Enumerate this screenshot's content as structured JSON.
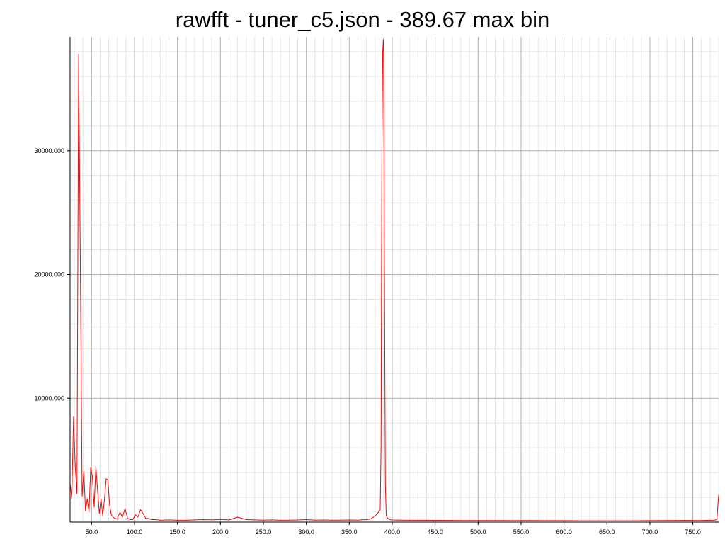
{
  "chart_data": {
    "type": "line",
    "title": "rawfft - tuner_c5.json - 389.67 max bin",
    "xlabel": "",
    "ylabel": "",
    "xlim": [
      25.0,
      780.0
    ],
    "ylim": [
      0.0,
      39200.0
    ],
    "grid": true,
    "legend": "none",
    "line_color": "#ff0000",
    "major_grid_color": "#b0b0b0",
    "minor_grid_color": "#e4e4e4",
    "x_ticks": [
      50,
      100,
      150,
      200,
      250,
      300,
      350,
      400,
      450,
      500,
      550,
      600,
      650,
      700,
      750
    ],
    "x_tick_labels": [
      "50.0",
      "100.0",
      "150.0",
      "200.0",
      "250.0",
      "300.0",
      "350.0",
      "400.0",
      "450.0",
      "500.0",
      "550.0",
      "600.0",
      "650.0",
      "700.0",
      "750.0"
    ],
    "y_ticks": [
      10000,
      20000,
      30000
    ],
    "y_tick_labels": [
      "10000.000",
      "20000.000",
      "30000.000"
    ],
    "series": [
      {
        "x": [
          25,
          27,
          29,
          31,
          33,
          35,
          37,
          39,
          41,
          43,
          45,
          47,
          49,
          51,
          53,
          55,
          57,
          59,
          61,
          63,
          65,
          67,
          69,
          71,
          73,
          75,
          77,
          80,
          83,
          86,
          89,
          92,
          95,
          98,
          101,
          104,
          107,
          110,
          113,
          116,
          120,
          125,
          130,
          140,
          150,
          160,
          170,
          180,
          190,
          200,
          210,
          220,
          230,
          240,
          250,
          260,
          270,
          280,
          290,
          300,
          310,
          320,
          330,
          340,
          350,
          360,
          370,
          375,
          380,
          383,
          385,
          386,
          387,
          388,
          389,
          389.67,
          390,
          391,
          392,
          393,
          394,
          395,
          397,
          400,
          410,
          420,
          440,
          460,
          480,
          500,
          520,
          540,
          560,
          580,
          600,
          620,
          640,
          660,
          680,
          700,
          720,
          740,
          760,
          770,
          775,
          778,
          780
        ],
        "y": [
          3300,
          1800,
          8500,
          4500,
          2300,
          37800,
          20000,
          2100,
          4100,
          900,
          1900,
          800,
          4400,
          3700,
          1200,
          4500,
          2600,
          700,
          1900,
          500,
          1800,
          3500,
          3400,
          1400,
          600,
          400,
          300,
          250,
          800,
          400,
          1100,
          300,
          200,
          200,
          600,
          400,
          1000,
          700,
          300,
          300,
          200,
          200,
          150,
          180,
          150,
          150,
          180,
          200,
          180,
          220,
          180,
          400,
          200,
          180,
          160,
          180,
          150,
          160,
          170,
          200,
          160,
          170,
          160,
          160,
          170,
          160,
          200,
          260,
          500,
          700,
          900,
          1000,
          6000,
          30000,
          38000,
          39000,
          38000,
          20000,
          3000,
          600,
          400,
          300,
          200,
          170,
          160,
          150,
          150,
          140,
          130,
          130,
          130,
          120,
          130,
          120,
          120,
          110,
          110,
          110,
          110,
          120,
          130,
          140,
          130,
          150,
          160,
          200,
          2200
        ]
      }
    ]
  }
}
